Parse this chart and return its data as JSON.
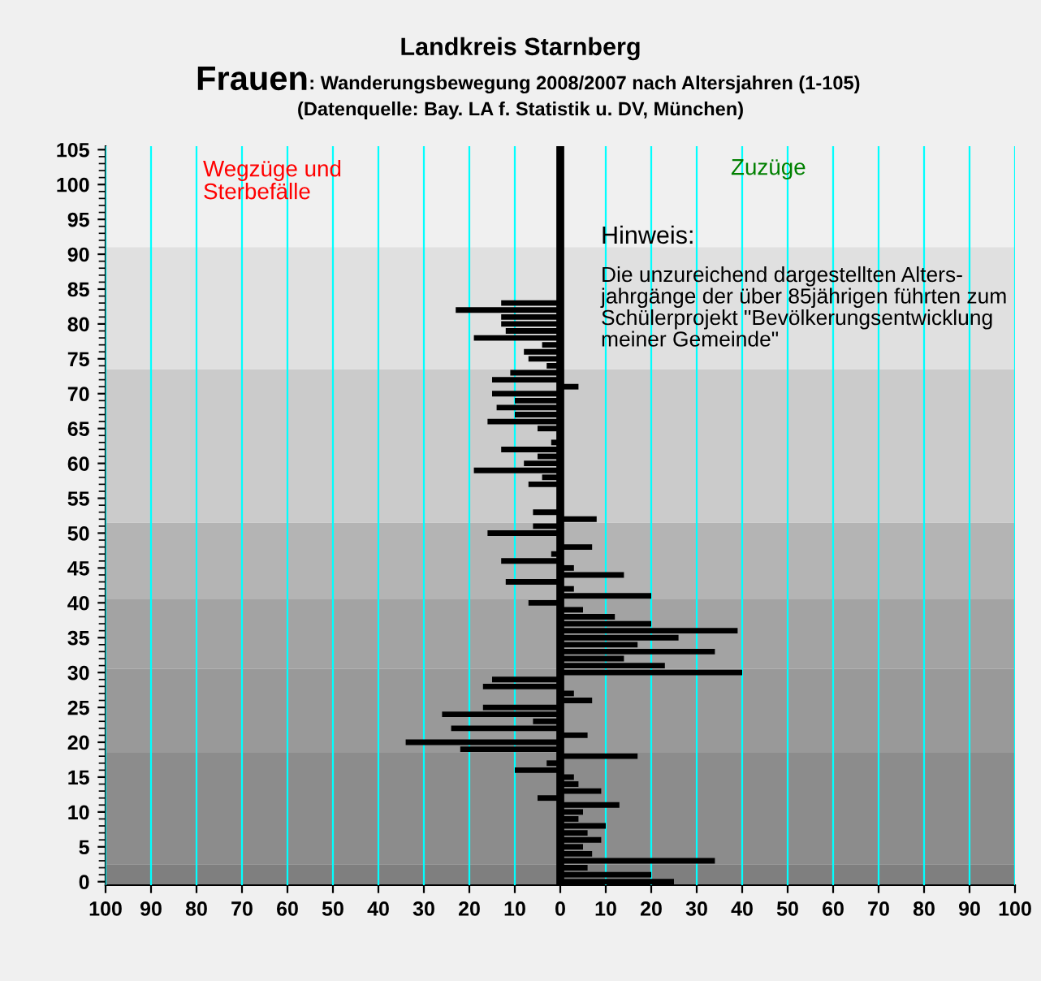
{
  "chart_data": {
    "type": "bar",
    "orientation": "horizontal",
    "title": "Landkreis Starnberg",
    "subtitle": "Frauen: Wanderungsbewegung 2008/2007 nach Altersjahren (1-105)",
    "annotations": [
      "(Datenquelle: Bay. LA f. Statistik u. DV, München)",
      "Wegzüge und\nSterbefälle",
      "Zuzüge",
      "Hinweis:",
      "Die unzureichend dargestellten Alters-\njahrgänge der über 85jährigen führten zum\nSchülerprojekt \"Bevölkerungsentwicklung\nmeiner Gemeinde\""
    ],
    "categories": [
      "105",
      null,
      null,
      null,
      null,
      "100",
      null,
      null,
      null,
      null,
      "95",
      null,
      null,
      null,
      null,
      "90",
      null,
      null,
      null,
      null,
      "85",
      null,
      null,
      null,
      null,
      "80",
      null,
      null,
      null,
      null,
      "75",
      null,
      null,
      null,
      null,
      "70",
      null,
      null,
      null,
      null,
      "65",
      null,
      null,
      null,
      null,
      "60",
      null,
      null,
      null,
      null,
      "55",
      null,
      null,
      null,
      null,
      "50",
      null,
      null,
      null,
      null,
      "45",
      null,
      null,
      null,
      null,
      "40",
      null,
      null,
      null,
      null,
      "35",
      null,
      null,
      null,
      null,
      "30",
      null,
      null,
      null,
      null,
      "25",
      null,
      null,
      null,
      null,
      "20",
      null,
      null,
      null,
      null,
      "15",
      null,
      null,
      null,
      null,
      "10",
      null,
      null,
      null,
      null,
      "5",
      null,
      null,
      null,
      null,
      "0"
    ],
    "values": [
      0,
      0,
      0,
      0,
      0,
      0,
      0,
      0,
      0,
      0,
      0,
      0,
      0,
      0,
      0,
      0,
      0,
      0,
      0,
      0,
      0,
      0,
      -13,
      -23,
      -13,
      -13,
      -12,
      -19,
      -4,
      -8,
      -7,
      -3,
      -11,
      -15,
      4,
      -15,
      -10,
      -14,
      -10,
      -16,
      -5,
      null,
      -2,
      -13,
      -5,
      -8,
      -19,
      -4,
      -7,
      null,
      null,
      null,
      -6,
      8,
      -6,
      -16,
      null,
      7,
      -2,
      -13,
      3,
      14,
      -12,
      3,
      20,
      -7,
      5,
      12,
      20,
      39,
      26,
      17,
      34,
      14,
      23,
      40,
      -15,
      -17,
      3,
      7,
      -17,
      -26,
      -6,
      -24,
      6,
      -34,
      -22,
      17,
      -3,
      -10,
      3,
      4,
      9,
      -5,
      13,
      5,
      4,
      10,
      6,
      9,
      5,
      7,
      34,
      6,
      20,
      25
    ],
    "color": "#000000",
    "xlim": [
      -100,
      100
    ],
    "xticks": [
      {
        "value": -100,
        "label": "100"
      },
      {
        "value": -90,
        "label": "90"
      },
      {
        "value": -80,
        "label": "80"
      },
      {
        "value": -70,
        "label": "70"
      },
      {
        "value": -60,
        "label": "60"
      },
      {
        "value": -50,
        "label": "50"
      },
      {
        "value": -40,
        "label": "40"
      },
      {
        "value": -30,
        "label": "30"
      },
      {
        "value": -20,
        "label": "20"
      },
      {
        "value": -10,
        "label": "10"
      },
      0,
      10,
      20,
      30,
      40,
      50,
      60,
      70,
      80,
      90,
      100
    ],
    "grid": "x",
    "ref_lines": [
      {
        "axis": "x",
        "value": 0,
        "color": "#000000"
      }
    ]
  }
}
